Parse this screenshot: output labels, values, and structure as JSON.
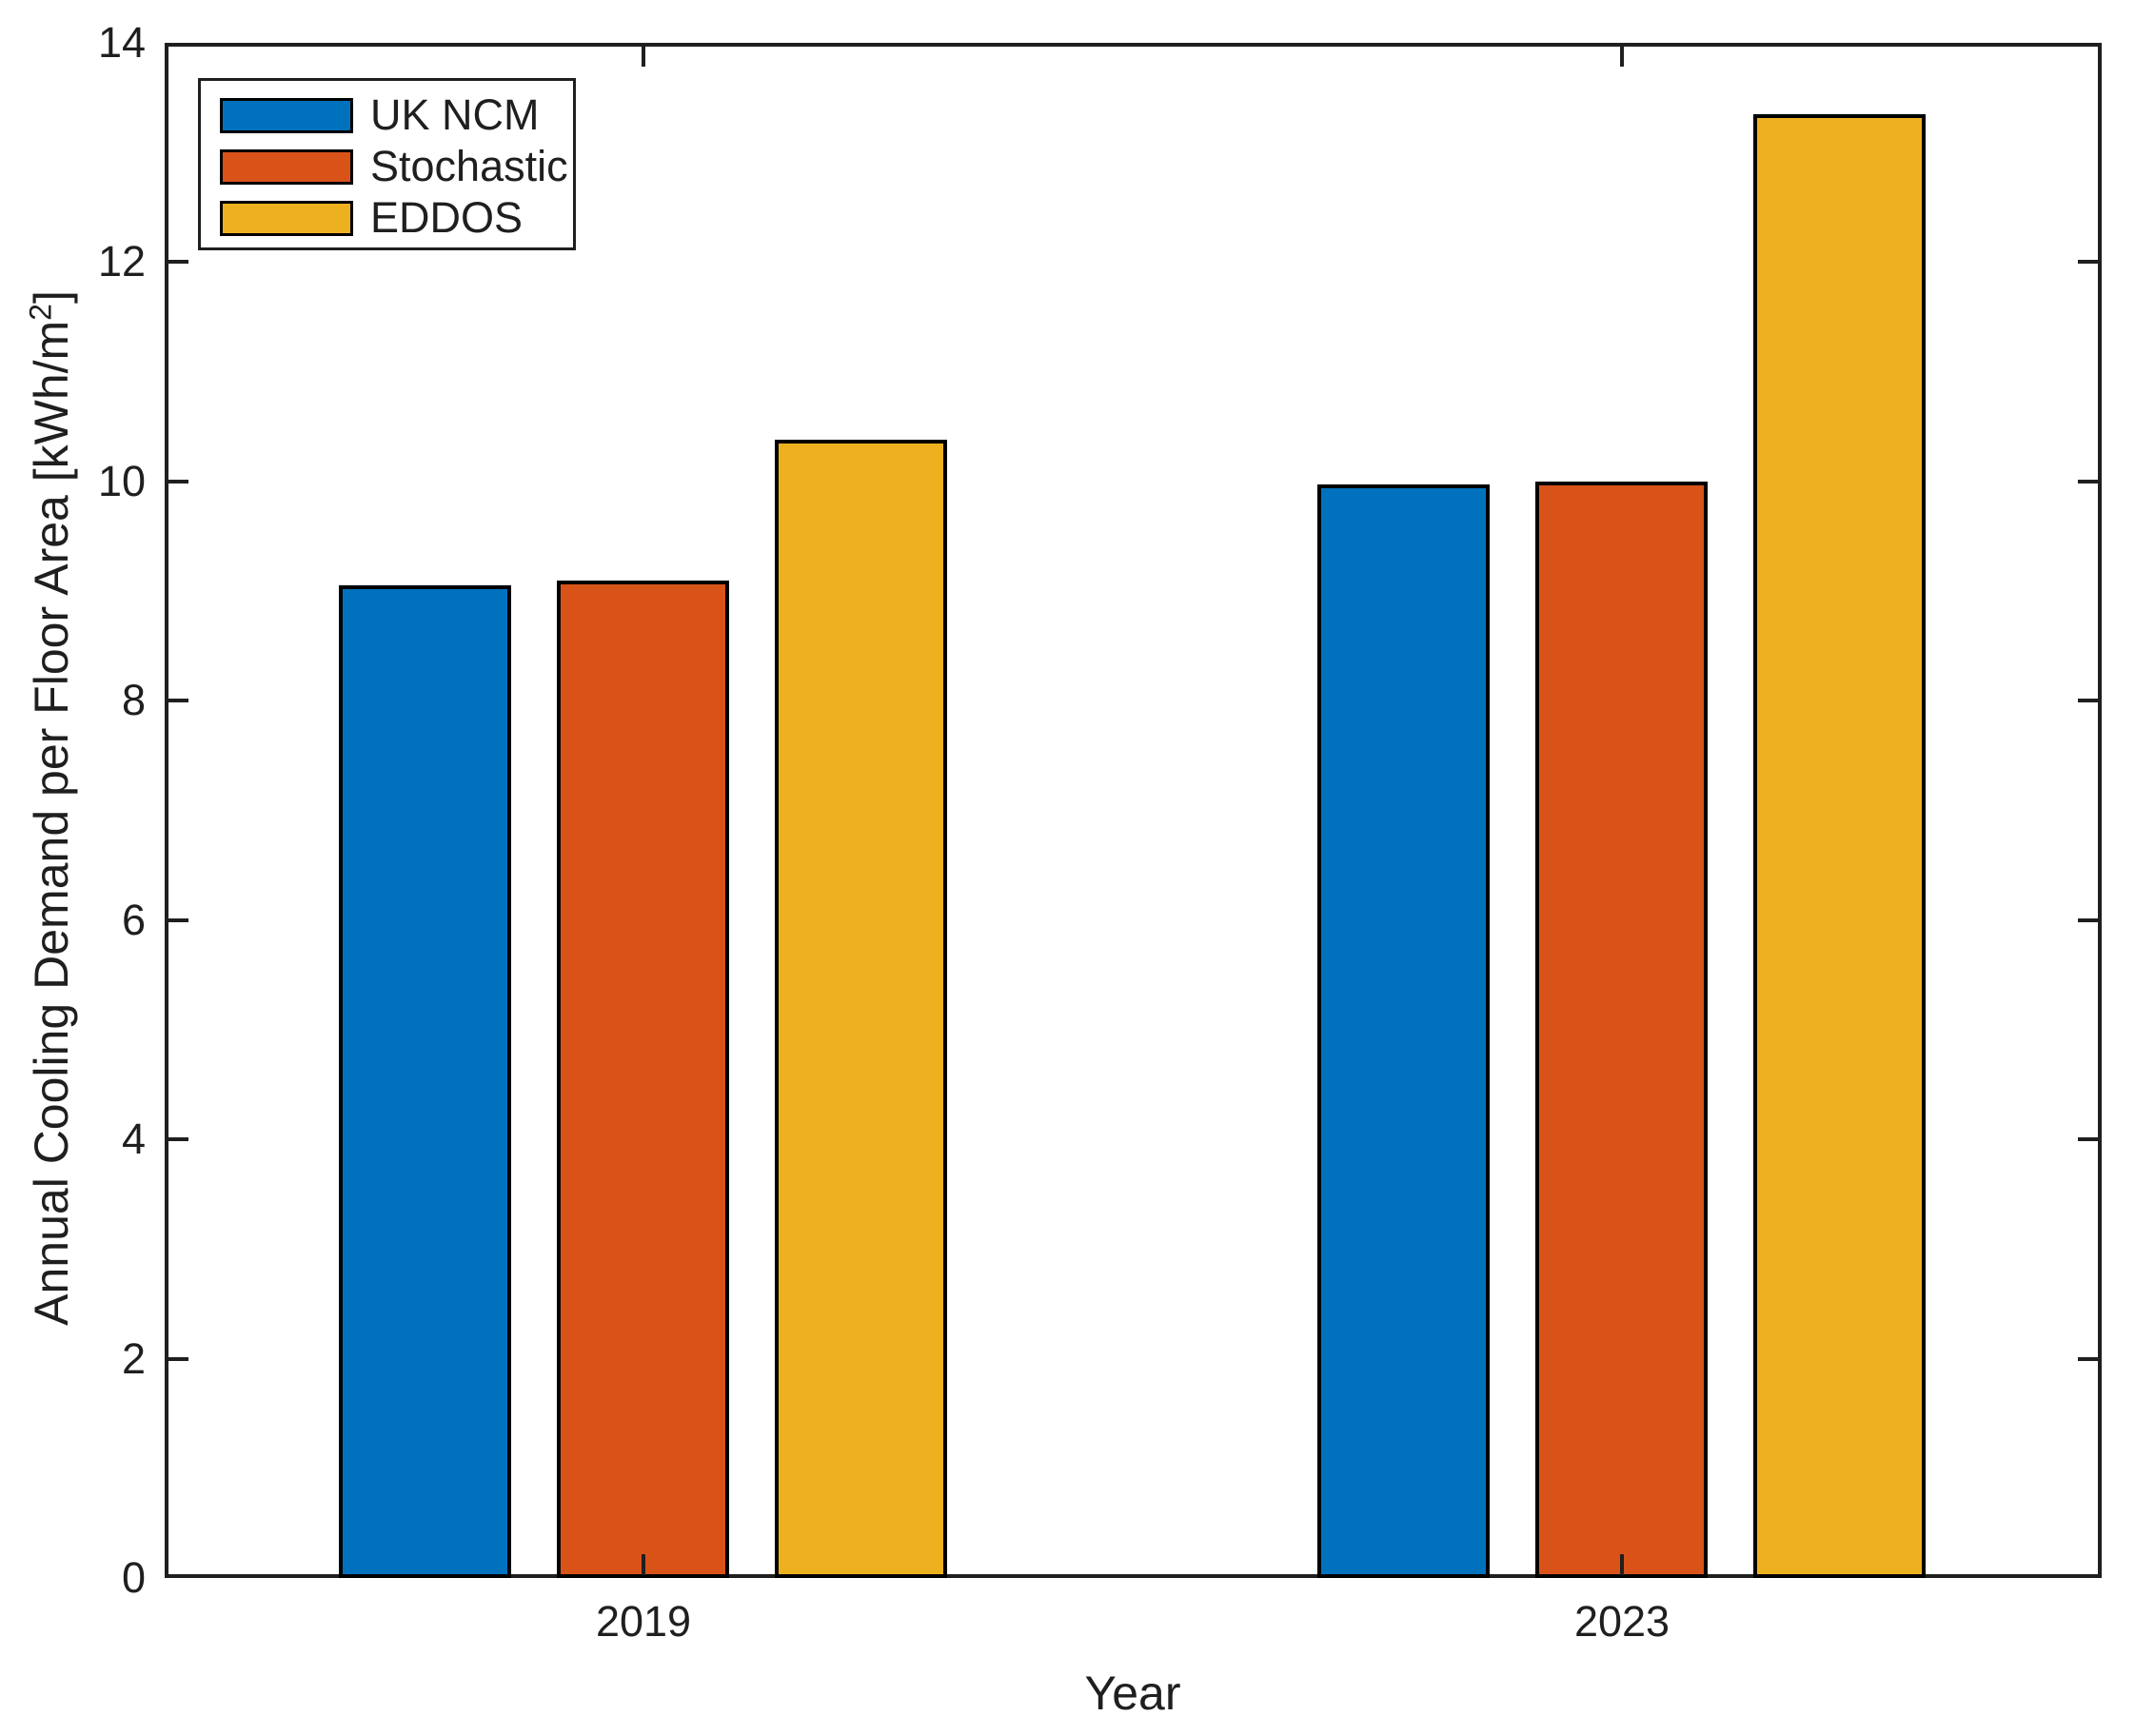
{
  "figure": {
    "background": "#ffffff",
    "axis_color": "#1f1f1f",
    "bar_edge_color": "#000000"
  },
  "chart_data": {
    "type": "bar",
    "title": "",
    "xlabel": "Year",
    "ylabel_prefix": "Annual Cooling Demand per Floor Area [kWh/m",
    "ylabel_sup": "2",
    "ylabel_suffix": "]",
    "categories": [
      "2019",
      "2023"
    ],
    "series": [
      {
        "name": "UK NCM",
        "color": "#0072BD",
        "values": [
          9.05,
          9.97
        ]
      },
      {
        "name": "Stochastic",
        "color": "#D95319",
        "values": [
          9.1,
          10.0
        ]
      },
      {
        "name": "EDDOS",
        "color": "#EDB120",
        "values": [
          10.38,
          13.35
        ]
      }
    ],
    "ylim": [
      0,
      14
    ],
    "yticks": [
      0,
      2,
      4,
      6,
      8,
      10,
      12,
      14
    ],
    "grid": false,
    "legend_position": "top-left",
    "tick_direction": "in"
  }
}
